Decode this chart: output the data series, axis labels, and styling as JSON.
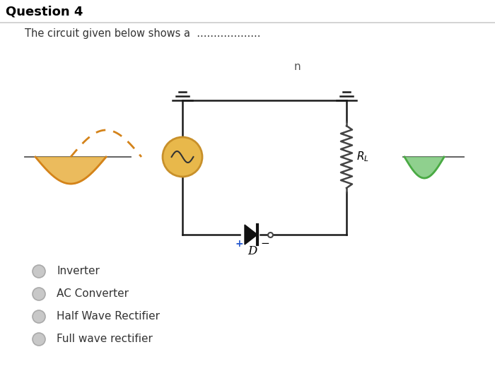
{
  "title": "Question 4",
  "options": [
    "Full wave rectifier",
    "Half Wave Rectifier",
    "AC Converter",
    "Inverter"
  ],
  "bg_color": "#ffffff",
  "title_color": "#000000",
  "text_color": "#333333",
  "circuit_line_color": "#1a1a1a",
  "source_face_color": "#e8b84b",
  "source_edge_color": "#c8902a",
  "wave_input_color": "#d4831a",
  "wave_output_color": "#4aaa44",
  "wave_output_fill": "#6bc86a",
  "plus_color": "#2255cc",
  "resistor_color": "#444444",
  "ground_color": "#1a1a1a",
  "diode_color": "#111111",
  "dot_color": "#444444"
}
